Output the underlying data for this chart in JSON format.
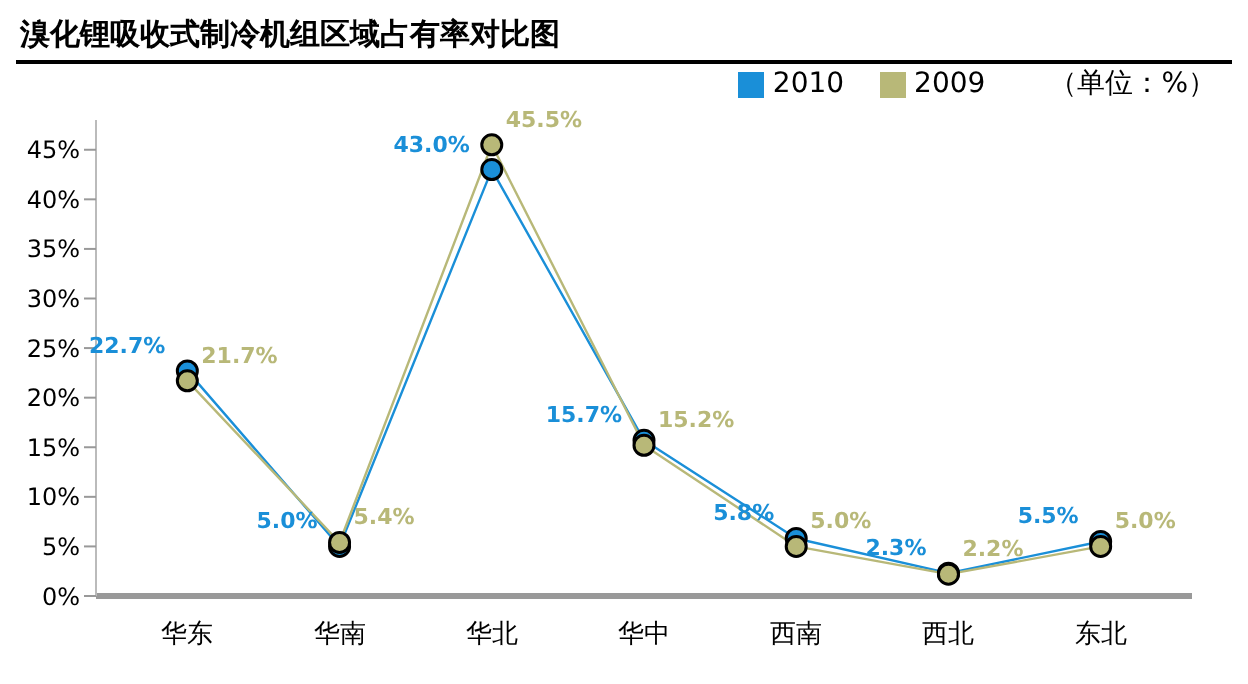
{
  "chart_data": {
    "type": "line",
    "title": "溴化锂吸收式制冷机组区域占有率对比图",
    "annotations": [
      "（单位：%）"
    ],
    "categories": [
      "华东",
      "华南",
      "华北",
      "华中",
      "西南",
      "西北",
      "东北"
    ],
    "series": [
      {
        "name": "2010",
        "color": "#1a8fd8",
        "values": [
          22.7,
          5.0,
          43.0,
          15.7,
          5.8,
          2.3,
          5.5
        ],
        "value_labels": [
          "22.7%",
          "5.0%",
          "43.0%",
          "15.7%",
          "5.8%",
          "2.3%",
          "5.5%"
        ]
      },
      {
        "name": "2009",
        "color": "#b8b878",
        "values": [
          21.7,
          5.4,
          45.5,
          15.2,
          5.0,
          2.2,
          5.0
        ],
        "value_labels": [
          "21.7%",
          "5.4%",
          "45.5%",
          "15.2%",
          "5.0%",
          "2.2%",
          "5.0%"
        ]
      }
    ],
    "ylim": [
      0,
      48
    ],
    "yticks": [
      {
        "value": 0,
        "label": "0%"
      },
      {
        "value": 5,
        "label": "5%"
      },
      {
        "value": 10,
        "label": "10%"
      },
      {
        "value": 15,
        "label": "15%"
      },
      {
        "value": 20,
        "label": "20%"
      },
      {
        "value": 25,
        "label": "25%"
      },
      {
        "value": 30,
        "label": "30%"
      },
      {
        "value": 35,
        "label": "35%"
      },
      {
        "value": 40,
        "label": "40%"
      },
      {
        "value": 45,
        "label": "45%"
      }
    ],
    "legend": "top right",
    "marker": "circle",
    "grid": false
  }
}
